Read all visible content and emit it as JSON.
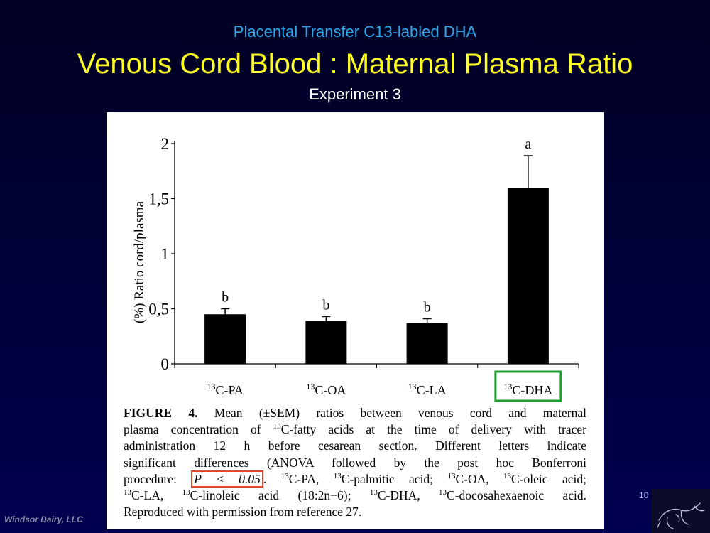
{
  "slide": {
    "subtitle": "Placental Transfer C13-labled DHA",
    "title": "Venous Cord Blood : Maternal Plasma Ratio",
    "caption": "Experiment 3",
    "page_number": "10",
    "footer_brand": "Windsor Dairy, LLC"
  },
  "chart_data": {
    "type": "bar",
    "ylabel": "(%) Ratio cord/plasma",
    "ylim": [
      0,
      2
    ],
    "yticks": [
      "0",
      "0,5",
      "1",
      "1,5",
      "2"
    ],
    "categories": [
      {
        "iso": "13",
        "name": "C-PA"
      },
      {
        "iso": "13",
        "name": "C-OA"
      },
      {
        "iso": "13",
        "name": "C-LA"
      },
      {
        "iso": "13",
        "name": "C-DHA"
      }
    ],
    "values": [
      0.45,
      0.39,
      0.37,
      1.6
    ],
    "errors": [
      0.05,
      0.04,
      0.04,
      0.29
    ],
    "letters": [
      "b",
      "b",
      "b",
      "a"
    ],
    "highlight_category": 3,
    "highlight_color": "#1e9e2e",
    "bar_color": "#000000"
  },
  "figure_caption": {
    "lines": [
      [
        "FIGURE 4.",
        " Mean (±SEM) ratios between venous cord and maternal"
      ],
      [
        "plasma concentration of ",
        "13",
        "C-fatty acids at the time of delivery with tracer"
      ],
      [
        "administration 12 h before cesarean section. Different letters indicate"
      ],
      [
        "significant differences (ANOVA followed by the post hoc Bonferroni"
      ],
      [
        "procedure: ",
        "P < 0.05",
        ". ",
        "13",
        "C-PA, ",
        "13",
        "C-palmitic acid; ",
        "13",
        "C-OA, ",
        "13",
        "C-oleic acid;"
      ],
      [
        "13",
        "C-LA, ",
        "13",
        "C-linoleic acid (18:2n−6); ",
        "13",
        "C-DHA, ",
        "13",
        "C-docosahexaenoic acid."
      ],
      [
        "Reproduced with permission from reference 27."
      ]
    ],
    "highlight_color": "#e8462a"
  }
}
